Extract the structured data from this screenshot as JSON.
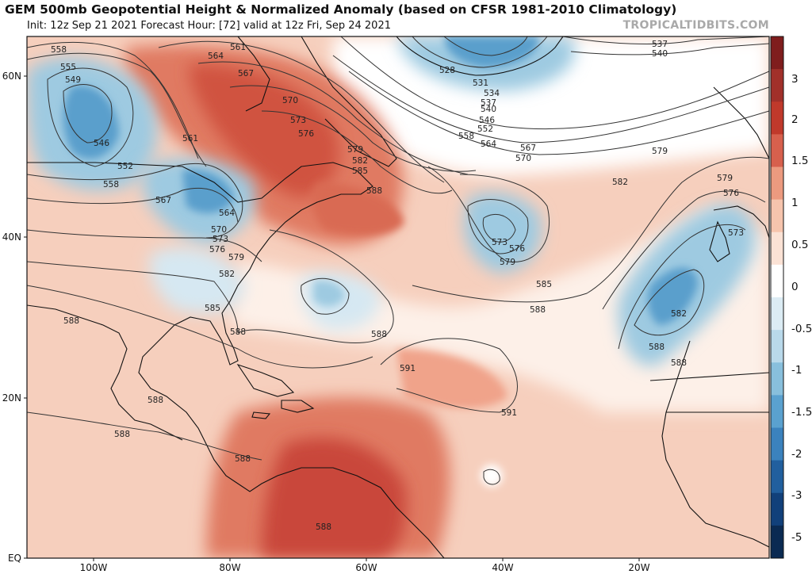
{
  "header": {
    "title": "GEM 500mb Geopotential Height & Normalized Anomaly (based on CFSR 1981-2010 Climatology)",
    "subtitle": "Init: 12z Sep 21 2021   Forecast Hour: [72]   valid at 12z Fri, Sep 24 2021",
    "credit": "TROPICALTIDBITS.COM"
  },
  "map": {
    "lat_labels": [
      "60N",
      "40N",
      "20N",
      "EQ"
    ],
    "lon_labels": [
      "100W",
      "80W",
      "60W",
      "40W",
      "20W"
    ],
    "contour_labels": [
      "558",
      "561",
      "564",
      "567",
      "570",
      "555",
      "549",
      "546",
      "552",
      "558",
      "561",
      "567",
      "564",
      "570",
      "573",
      "576",
      "579",
      "582",
      "585",
      "588",
      "573",
      "576",
      "579",
      "582",
      "585",
      "588",
      "528",
      "531",
      "534",
      "537",
      "540",
      "546",
      "552",
      "558",
      "564",
      "567",
      "570",
      "537",
      "540",
      "579",
      "582",
      "579",
      "576",
      "573",
      "573",
      "576",
      "579",
      "582",
      "585",
      "588",
      "588",
      "588",
      "588",
      "588",
      "591",
      "591",
      "588",
      "588",
      "588",
      "588"
    ]
  },
  "colorbar": {
    "labels": [
      "3",
      "2",
      "1.5",
      "1",
      "0.5",
      "0",
      "-0.5",
      "-1",
      "-1.5",
      "-2",
      "-3",
      "-5"
    ],
    "colors": [
      "#7f1d1d",
      "#a1302a",
      "#c0392b",
      "#d7604d",
      "#ec9a7f",
      "#f6c4ad",
      "#fbe2d5",
      "#ffffff",
      "#dcecf4",
      "#b9d9ea",
      "#88bfdc",
      "#5aa1cf",
      "#3b82bd",
      "#215f9e",
      "#11407a",
      "#0a2a52"
    ]
  },
  "anomaly_colors": {
    "strong_pos": "#d0533f",
    "pos": "#ee9e82",
    "weak_pos": "#f9d3c2",
    "neutral": "#ffffff",
    "weak_neg": "#d6e8f2",
    "neg": "#9ecae1",
    "strong_neg": "#5a9fcc"
  }
}
